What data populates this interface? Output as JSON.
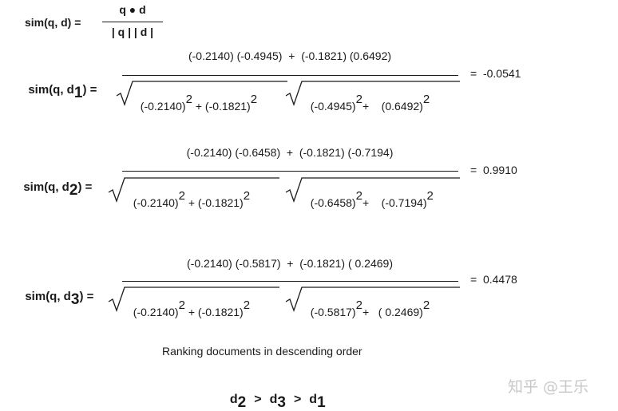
{
  "definition": {
    "lhs": "sim(q, d) =",
    "numerator": "q ● d",
    "denominator": "| q | | d |"
  },
  "equations": [
    {
      "lhs_prefix": "sim(q, d",
      "lhs_sub": "1",
      "lhs_suffix": ") =",
      "numerator": "(-0.2140) (-0.4945)  +  (-0.1821) (0.6492)",
      "den_left_a": "(-0.2140)",
      "den_left_plus": " + ",
      "den_left_b": "(-0.1821)",
      "den_right_a": "(-0.4945)",
      "den_right_plus": "+    ",
      "den_right_b": "(0.6492)",
      "exponent": "2",
      "result": "=  -0.0541"
    },
    {
      "lhs_prefix": "sim(q, d",
      "lhs_sub": "2",
      "lhs_suffix": ") =",
      "numerator": "(-0.2140) (-0.6458)  +  (-0.1821) (-0.7194)",
      "den_left_a": "(-0.2140)",
      "den_left_plus": " + ",
      "den_left_b": "(-0.1821)",
      "den_right_a": "(-0.6458)",
      "den_right_plus": "+    ",
      "den_right_b": "(-0.7194)",
      "exponent": "2",
      "result": "=  0.9910"
    },
    {
      "lhs_prefix": "sim(q, d",
      "lhs_sub": "3",
      "lhs_suffix": ") =",
      "numerator": "(-0.2140) (-0.5817)  +  (-0.1821) ( 0.2469)",
      "den_left_a": "(-0.2140)",
      "den_left_plus": " + ",
      "den_left_b": "(-0.1821)",
      "den_right_a": "(-0.5817)",
      "den_right_plus": "+   ",
      "den_right_b": "( 0.2469)",
      "exponent": "2",
      "result": "=  0.4478"
    }
  ],
  "ranking": {
    "caption": "Ranking documents in descending order",
    "d": "d",
    "sub_1": "2",
    "gt_1": ">",
    "sub_2": "3",
    "gt_2": ">",
    "sub_3": "1"
  },
  "watermark": "知乎 @王乐"
}
